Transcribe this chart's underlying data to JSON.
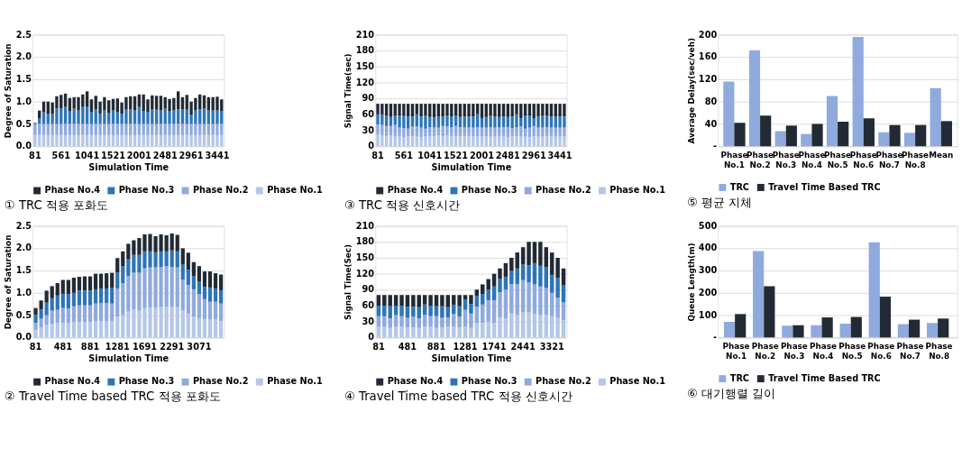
{
  "chart_data": [
    {
      "type": "bar",
      "stacked": true,
      "title": "① TRC 적용 포화도",
      "xlabel": "Simulation Time",
      "ylabel": "Degree of Saturation",
      "legend": "bottom",
      "grid": "y",
      "ylim": [
        0,
        2.5
      ],
      "yticks": [
        {
          "value": 0,
          "label": "0.0"
        },
        {
          "value": 0.5,
          "label": "0.5"
        },
        {
          "value": 1,
          "label": "1.0"
        },
        {
          "value": 1.5,
          "label": "1.5"
        },
        {
          "value": 2,
          "label": "2.0"
        },
        {
          "value": 2.5,
          "label": "2.5"
        }
      ],
      "categories": [
        "81",
        null,
        null,
        null,
        null,
        null,
        "561",
        null,
        null,
        null,
        null,
        null,
        "1041",
        null,
        null,
        null,
        null,
        null,
        "1521",
        null,
        null,
        null,
        null,
        null,
        "2001",
        null,
        null,
        null,
        null,
        null,
        "2481",
        null,
        null,
        null,
        null,
        null,
        "2961",
        null,
        null,
        null,
        null,
        null,
        "3441",
        null
      ],
      "series": [
        {
          "name": "Phase No.1",
          "color": "#b4c7e7",
          "values": [
            0.25,
            0.25,
            0.25,
            0.25,
            0.25,
            0.25,
            0.25,
            0.25,
            0.25,
            0.25,
            0.25,
            0.25,
            0.25,
            0.25,
            0.25,
            0.25,
            0.25,
            0.25,
            0.25,
            0.25,
            0.25,
            0.25,
            0.25,
            0.25,
            0.25,
            0.25,
            0.25,
            0.25,
            0.25,
            0.25,
            0.25,
            0.25,
            0.25,
            0.25,
            0.25,
            0.25,
            0.25,
            0.25,
            0.25,
            0.25,
            0.25,
            0.25,
            0.25,
            0.25
          ]
        },
        {
          "name": "Phase No.2",
          "color": "#8faadc",
          "values": [
            0.25,
            0.25,
            0.25,
            0.25,
            0.25,
            0.25,
            0.25,
            0.25,
            0.25,
            0.25,
            0.25,
            0.25,
            0.25,
            0.25,
            0.25,
            0.25,
            0.25,
            0.25,
            0.25,
            0.25,
            0.25,
            0.25,
            0.25,
            0.25,
            0.25,
            0.25,
            0.25,
            0.25,
            0.25,
            0.25,
            0.25,
            0.25,
            0.25,
            0.25,
            0.25,
            0.25,
            0.25,
            0.25,
            0.25,
            0.25,
            0.25,
            0.25,
            0.25,
            0.25
          ]
        },
        {
          "name": "Phase No.3",
          "color": "#2e75b6",
          "values": [
            0,
            0.12,
            0.26,
            0.22,
            0.22,
            0.35,
            0.35,
            0.38,
            0.28,
            0.34,
            0.3,
            0.38,
            0.38,
            0.26,
            0.32,
            0.23,
            0.3,
            0.24,
            0.3,
            0.27,
            0.22,
            0.32,
            0.32,
            0.3,
            0.38,
            0.28,
            0.27,
            0.32,
            0.32,
            0.3,
            0.34,
            0.28,
            0.3,
            0.33,
            0.32,
            0.32,
            0.2,
            0.3,
            0.32,
            0.34,
            0.3,
            0.3,
            0.3,
            0.28
          ]
        },
        {
          "name": "Phase No.4",
          "color": "#222a35",
          "values": [
            0.02,
            0.18,
            0.24,
            0.28,
            0.26,
            0.27,
            0.3,
            0.3,
            0.3,
            0.26,
            0.3,
            0.28,
            0.35,
            0.29,
            0.31,
            0.27,
            0.3,
            0.29,
            0.26,
            0.3,
            0.26,
            0.28,
            0.3,
            0.32,
            0.28,
            0.38,
            0.28,
            0.32,
            0.31,
            0.33,
            0.26,
            0.28,
            0.28,
            0.4,
            0.28,
            0.33,
            0.3,
            0.28,
            0.34,
            0.3,
            0.3,
            0.3,
            0.31,
            0.27
          ]
        }
      ]
    },
    {
      "type": "bar",
      "stacked": true,
      "title": "③ TRC 적용 신호시간",
      "xlabel": "Simulation Time",
      "ylabel": "Signal Time(sec)",
      "legend": "bottom",
      "grid": "y",
      "ylim": [
        0,
        210
      ],
      "yticks": [
        0,
        30,
        60,
        90,
        120,
        150,
        180,
        210
      ],
      "categories": [
        "81",
        null,
        null,
        null,
        null,
        null,
        "561",
        null,
        null,
        null,
        null,
        null,
        "1041",
        null,
        null,
        null,
        null,
        null,
        "1521",
        null,
        null,
        null,
        null,
        null,
        "2001",
        null,
        null,
        null,
        null,
        null,
        "2481",
        null,
        null,
        null,
        null,
        null,
        "2961",
        null,
        null,
        null,
        null,
        null,
        "3441",
        null
      ],
      "series": [
        {
          "name": "Phase No.1",
          "color": "#b4c7e7",
          "values": [
            22,
            20,
            19,
            20,
            18,
            18,
            17,
            19,
            19,
            18,
            17,
            18,
            19,
            18,
            20,
            19,
            20,
            18,
            19,
            18,
            19,
            18,
            18,
            18,
            19,
            18,
            18,
            18,
            18,
            19,
            17,
            18,
            19,
            18,
            18,
            17,
            19,
            18,
            18,
            18,
            19,
            18,
            18,
            18
          ]
        },
        {
          "name": "Phase No.2",
          "color": "#8faadc",
          "values": [
            19,
            20,
            19,
            18,
            22,
            17,
            17,
            14,
            18,
            19,
            18,
            15,
            17,
            17,
            15,
            19,
            17,
            18,
            19,
            18,
            16,
            17,
            17,
            18,
            16,
            17,
            18,
            17,
            17,
            17,
            19,
            16,
            17,
            19,
            15,
            18,
            19,
            17,
            17,
            18,
            16,
            17,
            17,
            17
          ]
        },
        {
          "name": "Phase No.3",
          "color": "#2e75b6",
          "values": [
            19,
            20,
            20,
            17,
            17,
            23,
            24,
            23,
            19,
            23,
            21,
            25,
            19,
            19,
            21,
            18,
            21,
            20,
            19,
            19,
            21,
            21,
            21,
            24,
            18,
            20,
            21,
            21,
            20,
            20,
            19,
            22,
            24,
            16,
            24,
            22,
            15,
            21,
            23,
            21,
            21,
            21,
            21,
            21
          ]
        },
        {
          "name": "Phase No.4",
          "color": "#222a35",
          "values": [
            20,
            20,
            22,
            25,
            23,
            22,
            22,
            24,
            24,
            20,
            24,
            22,
            25,
            26,
            24,
            24,
            22,
            24,
            23,
            25,
            24,
            24,
            24,
            20,
            27,
            25,
            23,
            24,
            25,
            24,
            25,
            24,
            20,
            27,
            23,
            23,
            27,
            24,
            22,
            23,
            24,
            24,
            24,
            24
          ]
        }
      ]
    },
    {
      "type": "bar",
      "title": "⑤ 평균 지체",
      "ylabel": "Average Delay(sec/veh)",
      "legend": "bottom",
      "grid": "y",
      "ylim": [
        0,
        200
      ],
      "yticks": [
        {
          "value": 0,
          "label": "-"
        },
        40,
        80,
        120,
        160,
        200
      ],
      "categories": [
        "Phase No.1",
        "Phase No.2",
        "Phase No.3",
        "Phase No.4",
        "Phase No.5",
        "Phase No.6",
        "Phase No.7",
        "Phase No.8",
        "Mean"
      ],
      "series": [
        {
          "name": "TRC",
          "color": "#8faadc",
          "values": [
            116,
            172,
            27,
            22,
            90,
            196,
            25,
            24,
            104
          ]
        },
        {
          "name": "Travel Time Based TRC",
          "color": "#222a35",
          "values": [
            42,
            55,
            37,
            40,
            44,
            50,
            38,
            38,
            45
          ]
        }
      ]
    },
    {
      "type": "bar",
      "stacked": true,
      "title": "② Travel Time based TRC 적용 포화도",
      "xlabel": "Simulation Time",
      "ylabel": "Degree of Saturation",
      "legend": "bottom",
      "grid": "y",
      "ylim": [
        0,
        2.5
      ],
      "yticks": [
        {
          "value": 0,
          "label": "0.0"
        },
        {
          "value": 0.5,
          "label": "0.5"
        },
        {
          "value": 1,
          "label": "1.0"
        },
        {
          "value": 1.5,
          "label": "1.5"
        },
        {
          "value": 2,
          "label": "2.0"
        },
        {
          "value": 2.5,
          "label": "2.5"
        }
      ],
      "categories": [
        "81",
        null,
        null,
        null,
        null,
        "481",
        null,
        null,
        null,
        null,
        "881",
        null,
        null,
        null,
        null,
        "1281",
        null,
        null,
        null,
        null,
        "1691",
        null,
        null,
        null,
        null,
        "2291",
        null,
        null,
        null,
        null,
        "3071",
        null,
        null,
        null,
        null
      ],
      "series": [
        {
          "name": "Phase No.1",
          "color": "#b4c7e7",
          "values": [
            0.17,
            0.22,
            0.28,
            0.31,
            0.32,
            0.33,
            0.33,
            0.34,
            0.35,
            0.35,
            0.35,
            0.36,
            0.37,
            0.37,
            0.37,
            0.47,
            0.5,
            0.58,
            0.63,
            0.6,
            0.66,
            0.67,
            0.67,
            0.68,
            0.69,
            0.68,
            0.68,
            0.6,
            0.53,
            0.47,
            0.43,
            0.41,
            0.41,
            0.41,
            0.37
          ]
        },
        {
          "name": "Phase No.2",
          "color": "#8faadc",
          "values": [
            0.16,
            0.2,
            0.22,
            0.29,
            0.3,
            0.33,
            0.32,
            0.36,
            0.37,
            0.37,
            0.37,
            0.4,
            0.4,
            0.4,
            0.39,
            0.63,
            0.72,
            0.8,
            0.82,
            0.85,
            0.89,
            0.9,
            0.9,
            0.9,
            0.91,
            0.9,
            0.89,
            0.7,
            0.65,
            0.61,
            0.54,
            0.45,
            0.39,
            0.39,
            0.39
          ]
        },
        {
          "name": "Phase No.3",
          "color": "#2e75b6",
          "values": [
            0.18,
            0.21,
            0.28,
            0.28,
            0.32,
            0.32,
            0.32,
            0.3,
            0.33,
            0.33,
            0.33,
            0.32,
            0.33,
            0.33,
            0.36,
            0.35,
            0.38,
            0.37,
            0.4,
            0.4,
            0.38,
            0.36,
            0.34,
            0.35,
            0.33,
            0.37,
            0.36,
            0.33,
            0.34,
            0.29,
            0.29,
            0.28,
            0.32,
            0.3,
            0.3
          ]
        },
        {
          "name": "Phase No.4",
          "color": "#222a35",
          "values": [
            0.15,
            0.2,
            0.27,
            0.27,
            0.28,
            0.31,
            0.32,
            0.34,
            0.31,
            0.32,
            0.32,
            0.35,
            0.33,
            0.34,
            0.33,
            0.33,
            0.33,
            0.35,
            0.33,
            0.38,
            0.38,
            0.39,
            0.36,
            0.38,
            0.36,
            0.38,
            0.37,
            0.37,
            0.38,
            0.32,
            0.34,
            0.34,
            0.36,
            0.34,
            0.35
          ]
        }
      ]
    },
    {
      "type": "bar",
      "stacked": true,
      "title": "④ Travel Time based TRC 적용 신호시간",
      "xlabel": "Simulation Time",
      "ylabel": "Signal Time(Sec)",
      "legend": "bottom",
      "grid": "y",
      "ylim": [
        0,
        210
      ],
      "yticks": [
        0,
        30,
        60,
        90,
        120,
        150,
        180,
        210
      ],
      "categories": [
        "81",
        null,
        null,
        null,
        null,
        "481",
        null,
        null,
        null,
        null,
        "881",
        null,
        null,
        null,
        null,
        "1281",
        null,
        null,
        null,
        null,
        "1741",
        null,
        null,
        null,
        null,
        "2441",
        null,
        null,
        null,
        null,
        "3321",
        null,
        null
      ],
      "series": [
        {
          "name": "Phase No.1",
          "color": "#b4c7e7",
          "values": [
            20,
            20,
            18,
            20,
            20,
            19,
            19,
            18,
            20,
            20,
            18,
            19,
            20,
            20,
            19,
            21,
            18,
            27,
            27,
            30,
            28,
            38,
            36,
            45,
            42,
            47,
            47,
            44,
            43,
            43,
            40,
            37,
            32
          ]
        },
        {
          "name": "Phase No.2",
          "color": "#8faadc",
          "values": [
            20,
            20,
            18,
            22,
            20,
            18,
            20,
            18,
            22,
            20,
            22,
            18,
            18,
            24,
            20,
            31,
            27,
            31,
            35,
            40,
            42,
            47,
            54,
            55,
            58,
            61,
            57,
            56,
            53,
            50,
            44,
            38,
            34
          ]
        },
        {
          "name": "Phase No.3",
          "color": "#2e75b6",
          "values": [
            20,
            20,
            23,
            18,
            20,
            21,
            19,
            21,
            20,
            20,
            19,
            22,
            19,
            17,
            20,
            19,
            18,
            20,
            20,
            20,
            26,
            25,
            24,
            25,
            30,
            30,
            32,
            40,
            39,
            40,
            34,
            37,
            32
          ]
        },
        {
          "name": "Phase No.4",
          "color": "#222a35",
          "values": [
            20,
            20,
            21,
            20,
            20,
            22,
            22,
            23,
            18,
            20,
            21,
            21,
            23,
            19,
            21,
            9,
            17,
            12,
            18,
            20,
            24,
            20,
            26,
            25,
            30,
            32,
            44,
            40,
            45,
            37,
            42,
            38,
            32
          ]
        }
      ]
    },
    {
      "type": "bar",
      "title": "⑥ 대기행렬 길이",
      "ylabel": "Queue Length(m)",
      "legend": "bottom",
      "grid": "y",
      "ylim": [
        0,
        500
      ],
      "yticks": [
        {
          "value": 0,
          "label": "-"
        },
        100,
        200,
        300,
        400,
        500
      ],
      "categories": [
        "Phase No.1",
        "Phase No.2",
        "Phase No.3",
        "Phase No.4",
        "Phase No.5",
        "Phase No.6",
        "Phase No.7",
        "Phase No.8"
      ],
      "series": [
        {
          "name": "TRC",
          "color": "#8faadc",
          "values": [
            70,
            387,
            53,
            55,
            62,
            427,
            60,
            65
          ]
        },
        {
          "name": "Travel Time Based TRC",
          "color": "#222a35",
          "values": [
            105,
            230,
            55,
            90,
            92,
            183,
            80,
            85
          ]
        }
      ]
    }
  ]
}
